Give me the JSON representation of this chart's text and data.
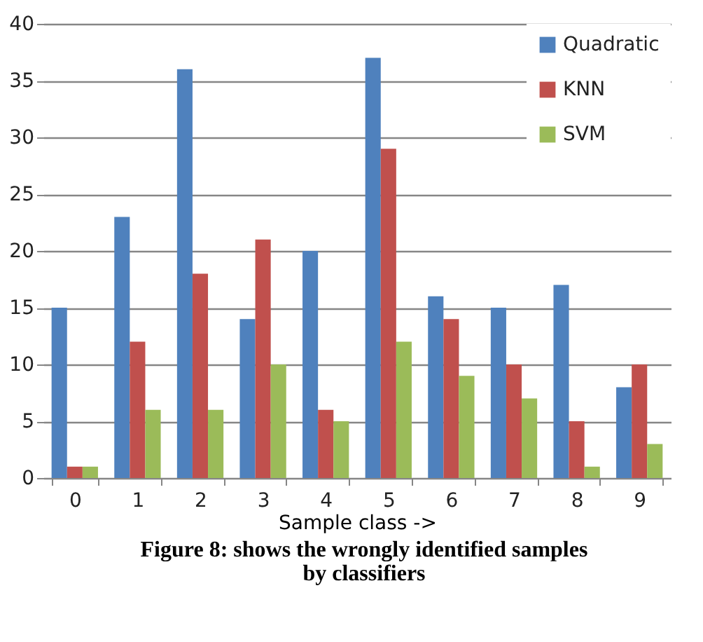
{
  "chart_data": {
    "type": "bar",
    "xlabel": "Sample class ->",
    "categories": [
      "0",
      "1",
      "2",
      "3",
      "4",
      "5",
      "6",
      "7",
      "8",
      "9"
    ],
    "series": [
      {
        "name": "Quadratic",
        "color": "#4f81bd",
        "values": [
          15,
          23,
          36,
          14,
          20,
          37,
          16,
          15,
          17,
          8
        ]
      },
      {
        "name": "KNN",
        "color": "#c0504d",
        "values": [
          1,
          12,
          18,
          21,
          6,
          29,
          14,
          10,
          5,
          10
        ]
      },
      {
        "name": "SVM",
        "color": "#9bbb59",
        "values": [
          1,
          6,
          6,
          10,
          5,
          12,
          9,
          7,
          1,
          3
        ]
      }
    ],
    "ylim": [
      0,
      40
    ],
    "yticks": [
      0,
      5,
      10,
      15,
      20,
      25,
      30,
      35,
      40
    ],
    "grid": "y",
    "legend": "top right",
    "annotations": [
      "Figure 8: shows the wrongly identified samples by classifiers"
    ]
  }
}
